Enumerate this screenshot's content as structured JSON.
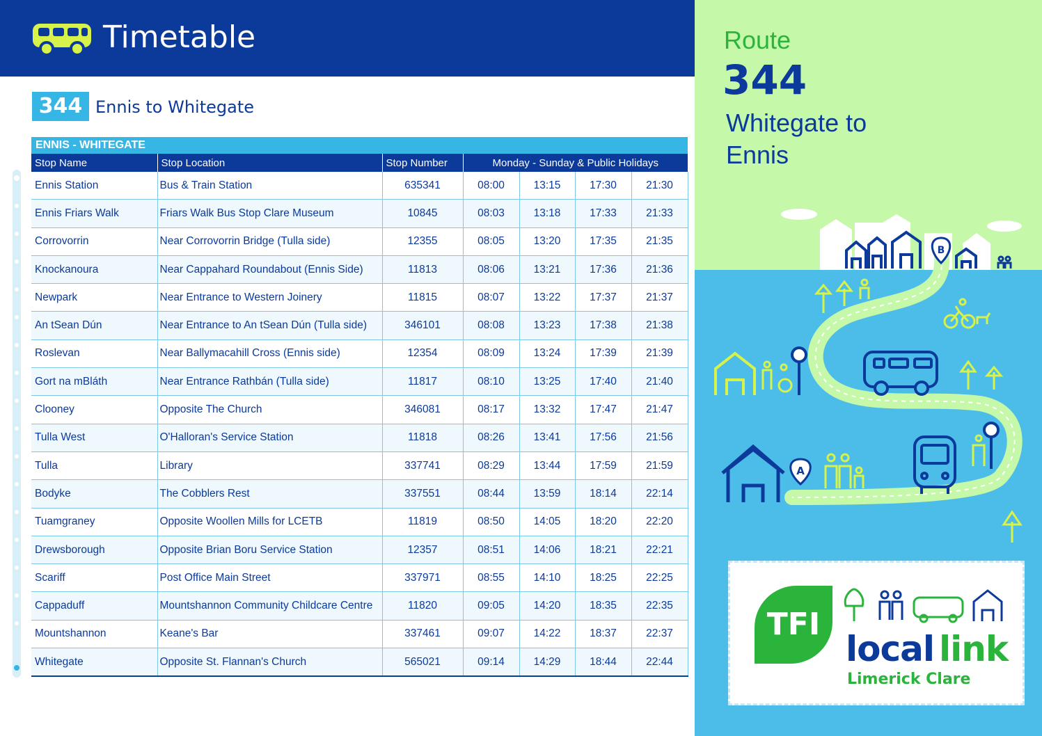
{
  "header": {
    "title": "Timetable"
  },
  "route": {
    "badge": "344",
    "title": "Ennis to Whitegate"
  },
  "table": {
    "caption": "ENNIS - WHITEGATE",
    "columns": {
      "stop_name": "Stop Name",
      "stop_location": "Stop Location",
      "stop_number": "Stop Number",
      "days": "Monday - Sunday & Public Holidays"
    },
    "rows": [
      {
        "name": "Ennis Station",
        "location": "Bus & Train Station",
        "number": "635341",
        "times": [
          "08:00",
          "13:15",
          "17:30",
          "21:30"
        ]
      },
      {
        "name": "Ennis Friars Walk",
        "location": "Friars Walk Bus Stop Clare Museum",
        "number": "10845",
        "times": [
          "08:03",
          "13:18",
          "17:33",
          "21:33"
        ]
      },
      {
        "name": "Corrovorrin",
        "location": "Near Corrovorrin Bridge (Tulla side)",
        "number": "12355",
        "times": [
          "08:05",
          "13:20",
          "17:35",
          "21:35"
        ]
      },
      {
        "name": "Knockanoura",
        "location": "Near Cappahard Roundabout (Ennis Side)",
        "number": "11813",
        "times": [
          "08:06",
          "13:21",
          "17:36",
          "21:36"
        ]
      },
      {
        "name": "Newpark",
        "location": "Near Entrance to Western Joinery",
        "number": "11815",
        "times": [
          "08:07",
          "13:22",
          "17:37",
          "21:37"
        ]
      },
      {
        "name": "An tSean Dún",
        "location": "Near Entrance to An tSean Dún (Tulla side)",
        "number": "346101",
        "times": [
          "08:08",
          "13:23",
          "17:38",
          "21:38"
        ]
      },
      {
        "name": "Roslevan",
        "location": "Near Ballymacahill Cross (Ennis side)",
        "number": "12354",
        "times": [
          "08:09",
          "13:24",
          "17:39",
          "21:39"
        ]
      },
      {
        "name": "Gort na mBláth",
        "location": "Near Entrance Rathbán (Tulla side)",
        "number": "11817",
        "times": [
          "08:10",
          "13:25",
          "17:40",
          "21:40"
        ]
      },
      {
        "name": "Clooney",
        "location": "Opposite The Church",
        "number": "346081",
        "times": [
          "08:17",
          "13:32",
          "17:47",
          "21:47"
        ]
      },
      {
        "name": "Tulla West",
        "location": "O'Halloran's Service Station",
        "number": "11818",
        "times": [
          "08:26",
          "13:41",
          "17:56",
          "21:56"
        ]
      },
      {
        "name": "Tulla",
        "location": "Library",
        "number": "337741",
        "times": [
          "08:29",
          "13:44",
          "17:59",
          "21:59"
        ]
      },
      {
        "name": "Bodyke",
        "location": "The Cobblers Rest",
        "number": "337551",
        "times": [
          "08:44",
          "13:59",
          "18:14",
          "22:14"
        ]
      },
      {
        "name": "Tuamgraney",
        "location": "Opposite Woollen Mills for LCETB",
        "number": "11819",
        "times": [
          "08:50",
          "14:05",
          "18:20",
          "22:20"
        ]
      },
      {
        "name": "Drewsborough",
        "location": "Opposite Brian Boru Service Station",
        "number": "12357",
        "times": [
          "08:51",
          "14:06",
          "18:21",
          "22:21"
        ]
      },
      {
        "name": "Scariff",
        "location": "Post Office Main Street",
        "number": "337971",
        "times": [
          "08:55",
          "14:10",
          "18:25",
          "22:25"
        ]
      },
      {
        "name": "Cappaduff",
        "location": "Mountshannon Community Childcare Centre",
        "number": "11820",
        "times": [
          "09:05",
          "14:20",
          "18:35",
          "22:35"
        ]
      },
      {
        "name": "Mountshannon",
        "location": "Keane's Bar",
        "number": "337461",
        "times": [
          "09:07",
          "14:22",
          "18:37",
          "22:37"
        ]
      },
      {
        "name": "Whitegate",
        "location": "Opposite St. Flannan's Church",
        "number": "565021",
        "times": [
          "09:14",
          "14:29",
          "18:44",
          "22:44"
        ]
      }
    ]
  },
  "panel": {
    "route_word": "Route",
    "route_number": "344",
    "destination": "Whitegate to Ennis",
    "map_stop_a": "A",
    "map_stop_b": "B"
  },
  "logo": {
    "tfi": "TFI",
    "word1": "local",
    "word2": "link",
    "region": "Limerick Clare"
  },
  "colors": {
    "navy": "#0b3a9b",
    "sky": "#36b6e5",
    "green": "#2bb43b",
    "lime": "#c6f8a9",
    "panel_blue": "#4cbde9"
  },
  "icons": [
    "bus-icon",
    "house-icon",
    "tree-icon",
    "person-icon",
    "wheelchair-icon",
    "cyclist-icon",
    "dog-icon",
    "bus-stop-icon",
    "location-pin-icon"
  ]
}
